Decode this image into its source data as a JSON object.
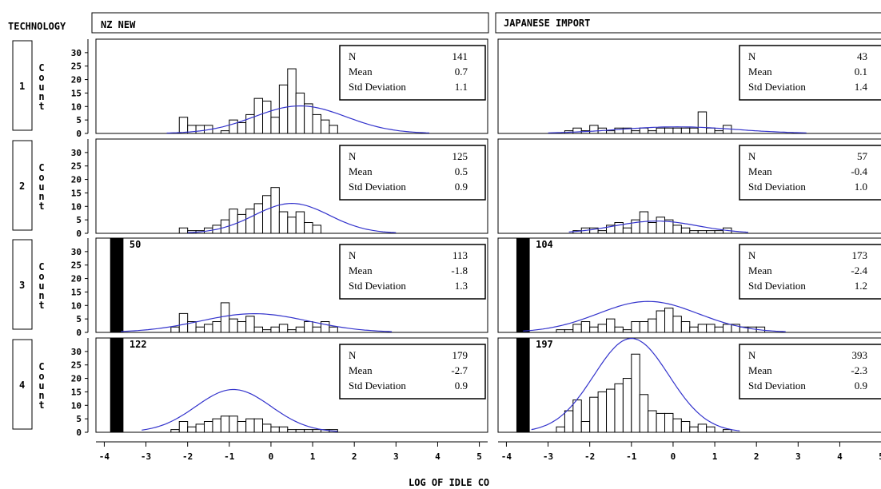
{
  "header": {
    "facet_label": "TECHNOLOGY",
    "col_labels": [
      "NZ NEW",
      "JAPANESE IMPORT"
    ]
  },
  "row_labels": [
    "1",
    "2",
    "3",
    "4"
  ],
  "ylabel_letters": [
    "C",
    "o",
    "u",
    "n",
    "t"
  ],
  "colors": {
    "bars": "#ffffff",
    "outline": "#000000",
    "curve": "#3333cc"
  },
  "chart_data": {
    "type": "bar",
    "xlabel": "LOG OF IDLE CO",
    "ylabel": "Count",
    "ylim": [
      0,
      35
    ],
    "yticks": [
      0,
      5,
      10,
      15,
      20,
      25,
      30
    ],
    "xlim": [
      -4.2,
      5.2
    ],
    "xticks": [
      -4,
      -3,
      -2,
      -1,
      0,
      1,
      2,
      3,
      4,
      5
    ],
    "bin_width": 0.2,
    "panels": [
      {
        "row": "1",
        "col": "NZ NEW",
        "stats": {
          "n_label": "N",
          "n": "141",
          "mean_label": "Mean",
          "mean": "0.7",
          "sd_label": "Std Deviation",
          "sd": "1.1"
        },
        "bins_start": -2.2,
        "counts": [
          6,
          3,
          3,
          3,
          0,
          1,
          5,
          4,
          7,
          13,
          12,
          6,
          18,
          24,
          15,
          11,
          7,
          5,
          3
        ],
        "clipped": null,
        "curve": {
          "n": 141,
          "mean": 0.7,
          "sd": 1.1,
          "xmin": -2.5,
          "xmax": 3.8
        }
      },
      {
        "row": "1",
        "col": "JAPANESE IMPORT",
        "stats": {
          "n_label": "N",
          "n": "43",
          "mean_label": "Mean",
          "mean": "0.1",
          "sd_label": "Std Deviation",
          "sd": "1.4"
        },
        "bins_start": -2.6,
        "counts": [
          1,
          2,
          1,
          3,
          2,
          1,
          2,
          2,
          1,
          2,
          1,
          2,
          2,
          2,
          2,
          2,
          8,
          2,
          1,
          3
        ],
        "clipped": null,
        "curve": {
          "n": 43,
          "mean": 0.1,
          "sd": 1.4,
          "xmin": -3.0,
          "xmax": 3.2
        }
      },
      {
        "row": "2",
        "col": "NZ NEW",
        "stats": {
          "n_label": "N",
          "n": "125",
          "mean_label": "Mean",
          "mean": "0.5",
          "sd_label": "Std Deviation",
          "sd": "0.9"
        },
        "bins_start": -2.2,
        "counts": [
          2,
          1,
          1,
          2,
          3,
          5,
          9,
          7,
          9,
          11,
          14,
          17,
          8,
          6,
          8,
          4,
          3
        ],
        "clipped": null,
        "curve": {
          "n": 125,
          "mean": 0.5,
          "sd": 0.9,
          "xmin": -2.0,
          "xmax": 3.0
        }
      },
      {
        "row": "2",
        "col": "JAPANESE IMPORT",
        "stats": {
          "n_label": "N",
          "n": "57",
          "mean_label": "Mean",
          "mean": "-0.4",
          "sd_label": "Std Deviation",
          "sd": "1.0"
        },
        "bins_start": -2.4,
        "counts": [
          1,
          2,
          2,
          1,
          3,
          4,
          2,
          5,
          8,
          4,
          6,
          5,
          3,
          2,
          1,
          1,
          1,
          1,
          2
        ],
        "clipped": null,
        "curve": {
          "n": 57,
          "mean": -0.4,
          "sd": 1.0,
          "xmin": -2.5,
          "xmax": 1.8
        }
      },
      {
        "row": "3",
        "col": "NZ NEW",
        "stats": {
          "n_label": "N",
          "n": "113",
          "mean_label": "Mean",
          "mean": "-1.8",
          "sd_label": "Std Deviation",
          "sd": "1.3"
        },
        "bins_start": -2.4,
        "counts": [
          2,
          7,
          4,
          2,
          3,
          4,
          11,
          5,
          4,
          6,
          2,
          1,
          2,
          3,
          1,
          2,
          4,
          2,
          4,
          2
        ],
        "clipped": {
          "x": -3.7,
          "count": 50,
          "label": "50"
        },
        "curve": {
          "n": 113,
          "mean": -0.4,
          "sd": 1.3,
          "xmin": -3.6,
          "xmax": 2.9
        }
      },
      {
        "row": "3",
        "col": "JAPANESE IMPORT",
        "stats": {
          "n_label": "N",
          "n": "173",
          "mean_label": "Mean",
          "mean": "-2.4",
          "sd_label": "Std Deviation",
          "sd": "1.2"
        },
        "bins_start": -2.8,
        "counts": [
          1,
          1,
          3,
          4,
          2,
          3,
          5,
          2,
          1,
          4,
          4,
          5,
          8,
          9,
          6,
          4,
          2,
          3,
          3,
          2,
          3,
          3,
          2,
          2,
          2
        ],
        "clipped": {
          "x": -3.6,
          "count": 104,
          "label": "104"
        },
        "curve": {
          "n": 173,
          "mean": -0.6,
          "sd": 1.2,
          "xmin": -3.6,
          "xmax": 2.7
        }
      },
      {
        "row": "4",
        "col": "NZ NEW",
        "stats": {
          "n_label": "N",
          "n": "179",
          "mean_label": "Mean",
          "mean": "-2.7",
          "sd_label": "Std Deviation",
          "sd": "0.9"
        },
        "bins_start": -2.4,
        "counts": [
          1,
          4,
          2,
          3,
          4,
          5,
          6,
          6,
          4,
          5,
          5,
          3,
          2,
          2,
          1,
          1,
          1,
          1,
          1,
          1
        ],
        "clipped": {
          "x": -3.7,
          "count": 122,
          "label": "122"
        },
        "curve": {
          "n": 179,
          "mean": -0.9,
          "sd": 0.9,
          "xmin": -3.1,
          "xmax": 1.6
        }
      },
      {
        "row": "4",
        "col": "JAPANESE IMPORT",
        "stats": {
          "n_label": "N",
          "n": "393",
          "mean_label": "Mean",
          "mean": "-2.3",
          "sd_label": "Std Deviation",
          "sd": "0.9"
        },
        "bins_start": -2.8,
        "counts": [
          2,
          8,
          12,
          4,
          13,
          15,
          16,
          18,
          20,
          29,
          14,
          8,
          7,
          7,
          5,
          4,
          2,
          3,
          2,
          0,
          1
        ],
        "clipped": {
          "x": -3.6,
          "count": 197,
          "label": "197"
        },
        "curve": {
          "n": 393,
          "mean": -1.0,
          "sd": 0.9,
          "xmin": -3.4,
          "xmax": 1.6
        }
      }
    ]
  }
}
